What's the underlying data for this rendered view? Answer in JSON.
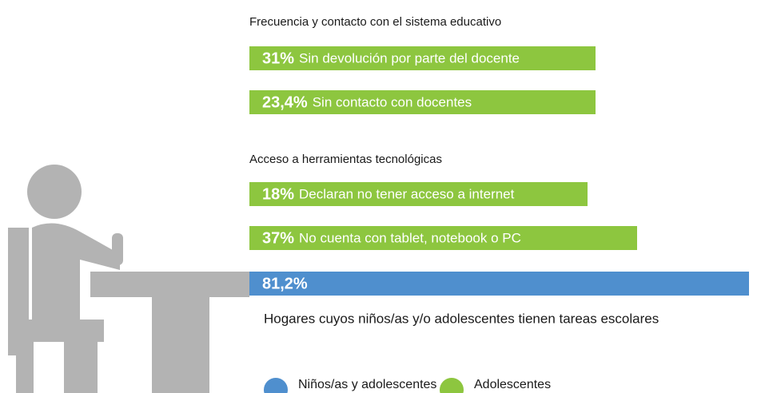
{
  "sections": [
    {
      "title": "Frecuencia y contacto con el sistema educativo",
      "items": [
        {
          "value": "31%",
          "label": "Sin devolución por parte del docente"
        },
        {
          "value": "23,4%",
          "label": "Sin contacto con docentes"
        }
      ]
    },
    {
      "title": "Acceso a herramientas tecnológicas",
      "items": [
        {
          "value": "18%",
          "label": "Declaran no tener acceso a internet"
        },
        {
          "value": "37%",
          "label": "No cuenta con tablet, notebook o PC"
        }
      ]
    }
  ],
  "highlight": {
    "value": "81,2%",
    "caption": "Hogares cuyos niños/as y/o adolescentes tienen tareas escolares"
  },
  "legend": [
    {
      "label": "Niños/as y adolescentes",
      "color": "#4f8fce"
    },
    {
      "label": "Adolescentes",
      "color": "#8dc63f"
    }
  ]
}
